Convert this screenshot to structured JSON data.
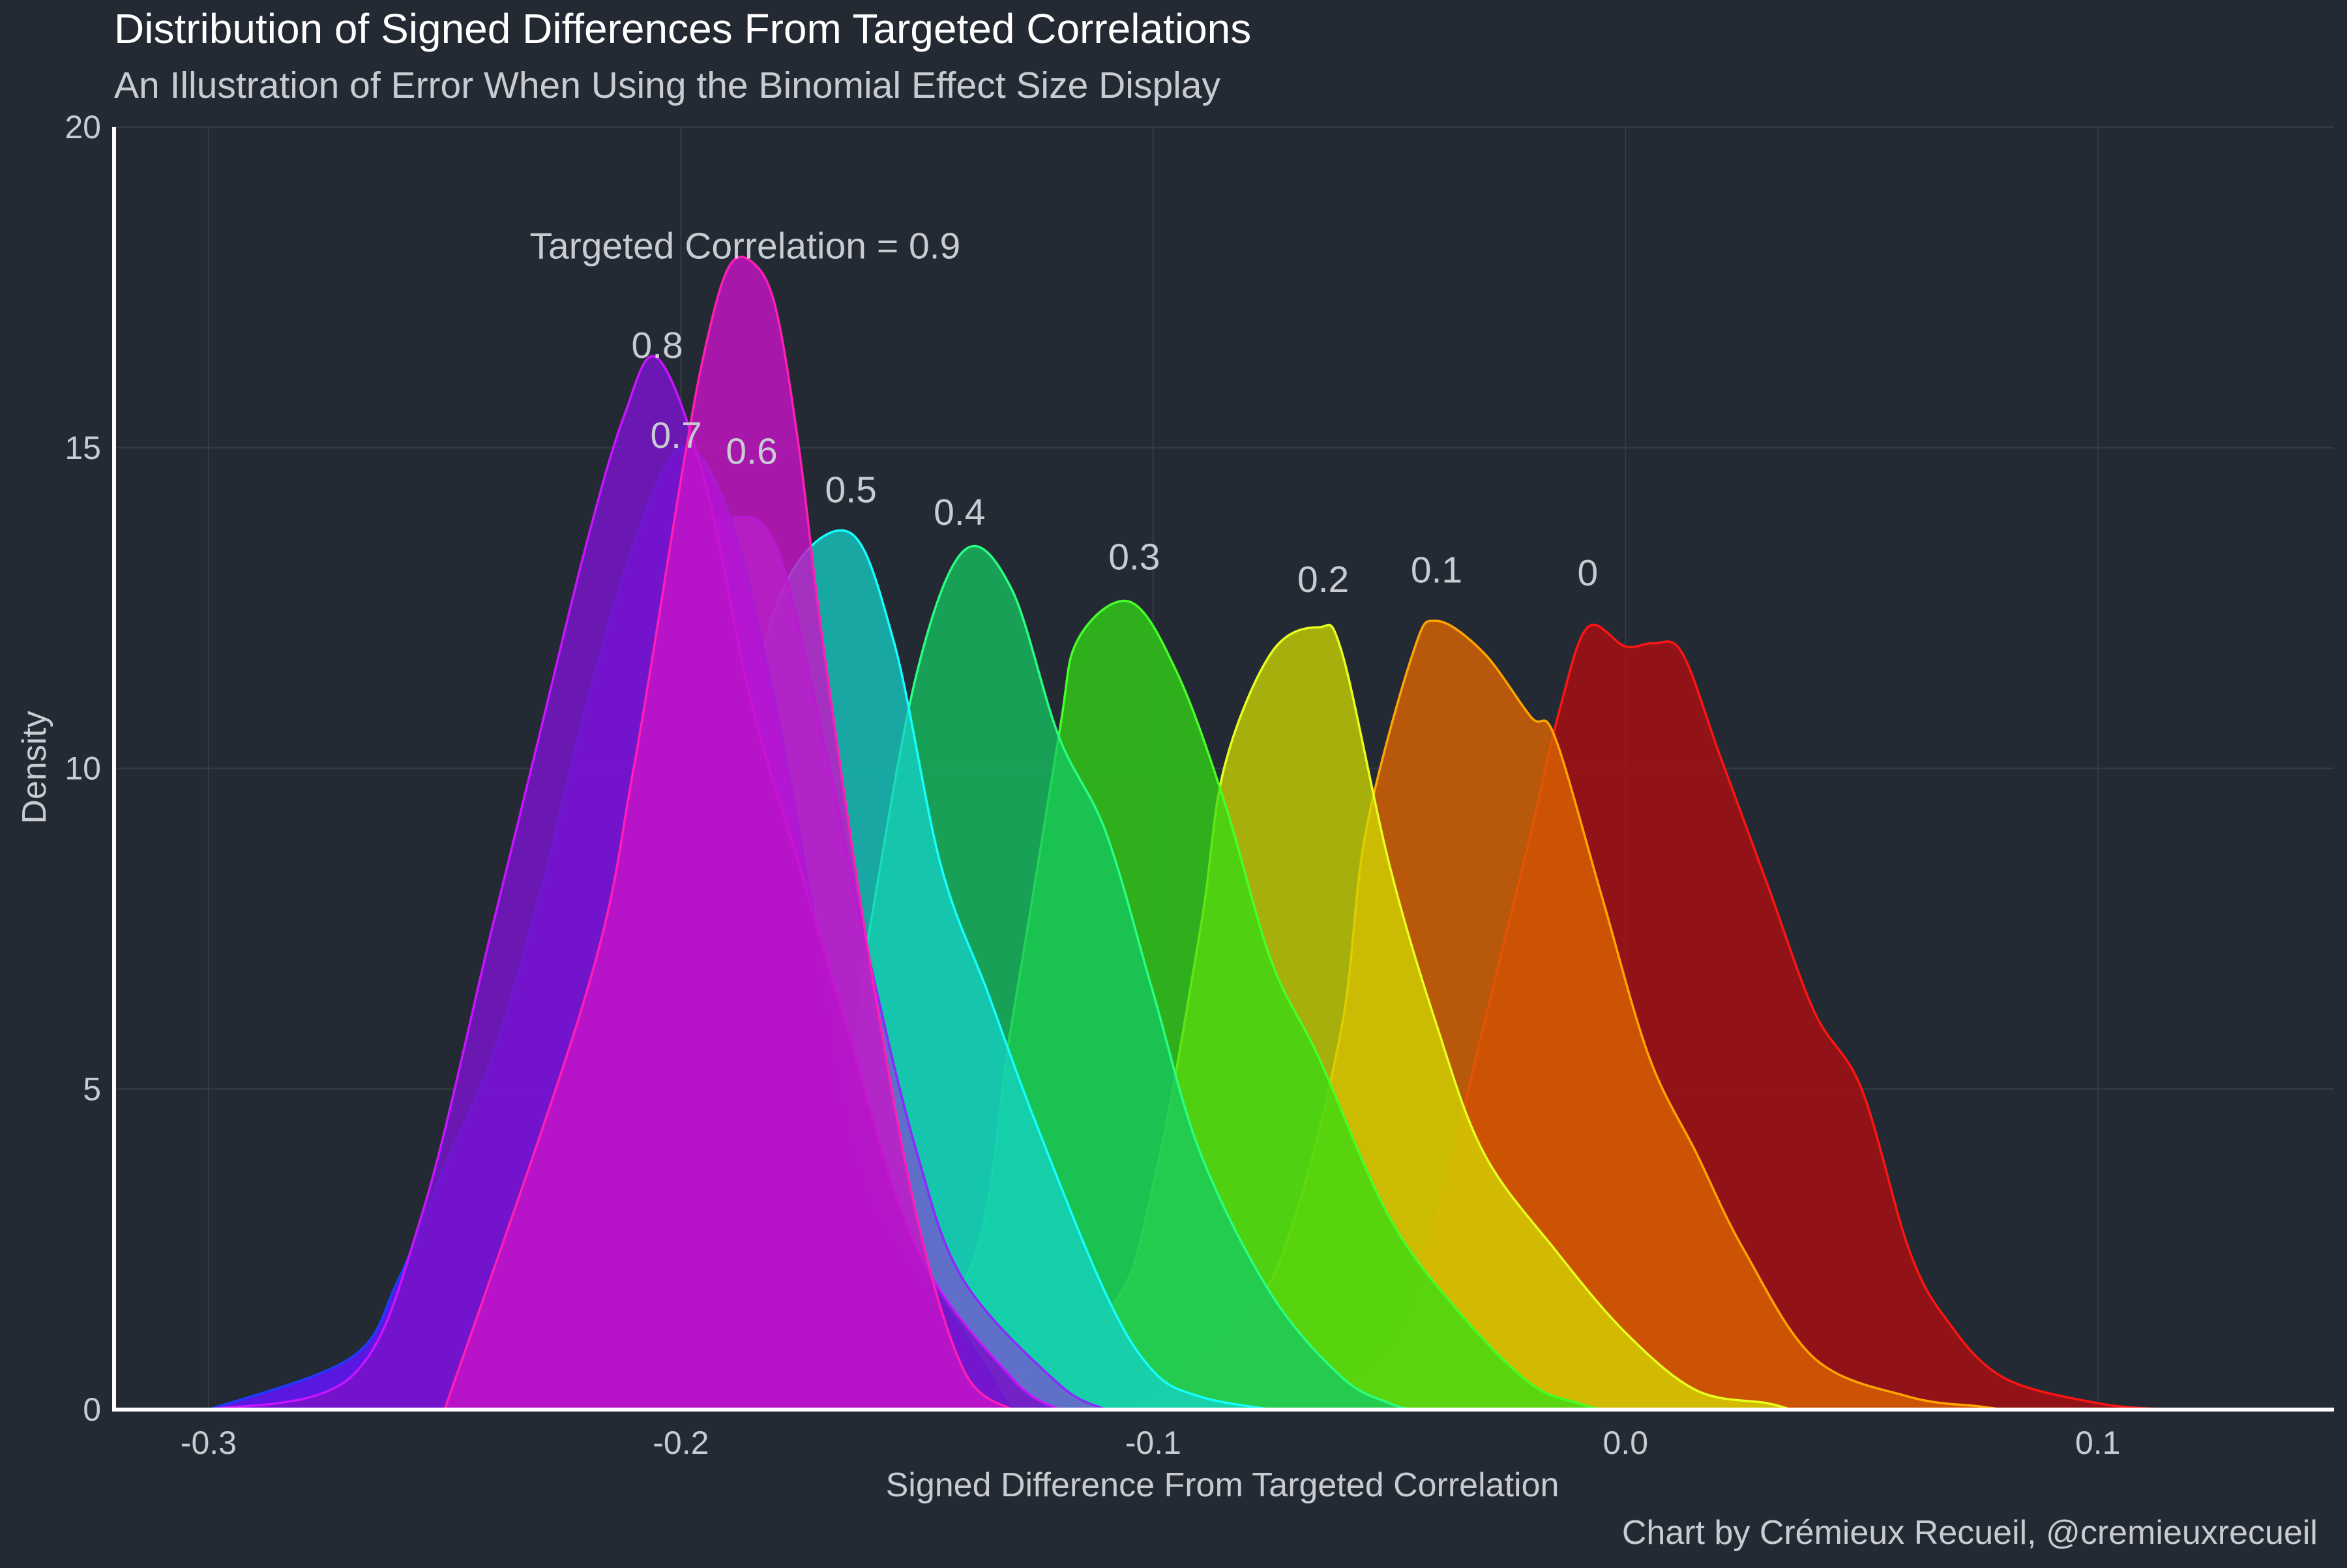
{
  "chart_data": {
    "type": "area",
    "title": "Distribution of Signed Differences From Targeted Correlations",
    "subtitle": "An Illustration of Error When Using the Binomial Effect Size Display",
    "xlabel": "Signed Difference From Targeted Correlation",
    "ylabel": "Density",
    "caption": "Chart by Crémieux Recueil, @cremieuxrecueil",
    "xlim": [
      -0.32,
      0.15
    ],
    "ylim": [
      0,
      20
    ],
    "x_ticks": [
      -0.3,
      -0.2,
      -0.1,
      0.0,
      0.1
    ],
    "x_tick_labels": [
      "-0.3",
      "-0.2",
      "-0.1",
      "0.0",
      "0.1"
    ],
    "y_ticks": [
      0,
      5,
      10,
      15,
      20
    ],
    "y_tick_labels": [
      "0",
      "5",
      "10",
      "15",
      "20"
    ],
    "grid": true,
    "legend": "none (series labeled directly above peaks)",
    "colors": {
      "background": "#242a33",
      "grid": "#353c47",
      "axis_line": "#ffffff",
      "text": "#c8ccd2",
      "title_text": "#ffffff"
    },
    "series": [
      {
        "name": "0",
        "label": "0",
        "color": "#ff1414",
        "fill": "#a50f14",
        "fill_opacity": 0.85,
        "label_x": -0.008,
        "label_y": 12.85,
        "x": [
          -0.07,
          -0.05,
          -0.04,
          -0.03,
          -0.02,
          -0.014,
          -0.008,
          0,
          0.006,
          0.012,
          0.02,
          0.03,
          0.04,
          0.05,
          0.06,
          0.068,
          0.08,
          0.1,
          0.115
        ],
        "y": [
          0.05,
          1.0,
          3.0,
          6.0,
          9.0,
          10.9,
          12.2,
          11.9,
          11.95,
          11.8,
          10.2,
          8.2,
          6.2,
          5.0,
          2.5,
          1.4,
          0.5,
          0.1,
          0
        ]
      },
      {
        "name": "0.1",
        "label": "0.1",
        "color": "#ffa500",
        "fill": "#dc6400",
        "fill_opacity": 0.8,
        "label_x": -0.04,
        "label_y": 12.9,
        "x": [
          -0.105,
          -0.08,
          -0.07,
          -0.06,
          -0.055,
          -0.045,
          -0.04,
          -0.03,
          -0.02,
          -0.015,
          -0.005,
          0.005,
          0.015,
          0.025,
          0.04,
          0.06,
          0.075,
          0.08
        ],
        "y": [
          0.05,
          1.5,
          3.0,
          6.0,
          9.0,
          11.8,
          12.3,
          11.8,
          10.8,
          10.5,
          8.0,
          5.5,
          4.0,
          2.5,
          0.8,
          0.2,
          0.05,
          0
        ]
      },
      {
        "name": "0.2",
        "label": "0.2",
        "color": "#e6ff1e",
        "fill": "#d2dc00",
        "fill_opacity": 0.75,
        "label_x": -0.064,
        "label_y": 12.75,
        "x": [
          -0.14,
          -0.11,
          -0.1,
          -0.09,
          -0.085,
          -0.075,
          -0.065,
          -0.06,
          -0.05,
          -0.04,
          -0.03,
          -0.015,
          0,
          0.015,
          0.03,
          0.035
        ],
        "y": [
          0.05,
          1.5,
          3.5,
          7.5,
          10.0,
          11.8,
          12.2,
          11.8,
          8.5,
          6.0,
          4.0,
          2.5,
          1.2,
          0.3,
          0.1,
          0
        ]
      },
      {
        "name": "0.3",
        "label": "0.3",
        "color": "#46ff28",
        "fill": "#32dc14",
        "fill_opacity": 0.75,
        "label_x": -0.104,
        "label_y": 13.1,
        "x": [
          -0.17,
          -0.14,
          -0.13,
          -0.12,
          -0.116,
          -0.105,
          -0.095,
          -0.085,
          -0.075,
          -0.065,
          -0.05,
          -0.035,
          -0.02,
          -0.01,
          -0.005
        ],
        "y": [
          0.05,
          2.0,
          6.0,
          10.5,
          12.0,
          12.6,
          11.5,
          9.5,
          7.0,
          5.5,
          3.0,
          1.5,
          0.4,
          0.1,
          0
        ]
      },
      {
        "name": "0.4",
        "label": "0.4",
        "color": "#28ff82",
        "fill": "#14c864",
        "fill_opacity": 0.75,
        "label_x": -0.141,
        "label_y": 13.8,
        "x": [
          -0.2,
          -0.17,
          -0.16,
          -0.15,
          -0.14,
          -0.13,
          -0.12,
          -0.11,
          -0.1,
          -0.09,
          -0.075,
          -0.06,
          -0.05,
          -0.045
        ],
        "y": [
          0.05,
          3.0,
          7.5,
          11.5,
          13.4,
          12.8,
          10.5,
          9.0,
          6.5,
          4.0,
          1.8,
          0.5,
          0.1,
          0
        ]
      },
      {
        "name": "0.5",
        "label": "0.5",
        "color": "#14ffff",
        "fill": "#14d2c8",
        "fill_opacity": 0.75,
        "label_x": -0.164,
        "label_y": 14.15,
        "x": [
          -0.22,
          -0.2,
          -0.19,
          -0.18,
          -0.165,
          -0.155,
          -0.145,
          -0.135,
          -0.125,
          -0.11,
          -0.1,
          -0.09,
          -0.075
        ],
        "y": [
          0.1,
          3.0,
          8.5,
          12.5,
          13.7,
          12.0,
          8.5,
          6.5,
          4.5,
          1.8,
          0.6,
          0.2,
          0
        ]
      },
      {
        "name": "0.6",
        "label": "0.6",
        "color": "#8c28ff",
        "fill": "#7850d2",
        "fill_opacity": 0.75,
        "label_x": -0.185,
        "label_y": 14.75,
        "x": [
          -0.25,
          -0.23,
          -0.22,
          -0.205,
          -0.195,
          -0.19,
          -0.18,
          -0.17,
          -0.16,
          -0.15,
          -0.14,
          -0.12,
          -0.11
        ],
        "y": [
          0.05,
          3.0,
          6.0,
          10.5,
          13.5,
          13.9,
          13.5,
          10.5,
          7.0,
          4.0,
          2.0,
          0.4,
          0
        ]
      },
      {
        "name": "0.7",
        "label": "0.7",
        "color": "#1e3cff",
        "fill": "#6414ff",
        "fill_opacity": 0.85,
        "label_x": -0.201,
        "label_y": 15.0,
        "x": [
          -0.3,
          -0.27,
          -0.26,
          -0.25,
          -0.24,
          -0.23,
          -0.22,
          -0.21,
          -0.2,
          -0.19,
          -0.18,
          -0.17,
          -0.16,
          -0.14,
          -0.13
        ],
        "y": [
          0,
          0.8,
          2.0,
          3.8,
          5.5,
          8.0,
          11.0,
          13.5,
          15.0,
          14.0,
          11.0,
          7.0,
          3.5,
          1.2,
          0
        ]
      },
      {
        "name": "0.8",
        "label": "0.8",
        "color": "#c814ff",
        "fill": "#7814c8",
        "fill_opacity": 0.85,
        "label_x": -0.205,
        "label_y": 16.4,
        "x": [
          -0.3,
          -0.27,
          -0.255,
          -0.24,
          -0.23,
          -0.22,
          -0.212,
          -0.205,
          -0.195,
          -0.185,
          -0.175,
          -0.165,
          -0.15,
          -0.13,
          -0.12
        ],
        "y": [
          0,
          0.5,
          3.0,
          7.5,
          10.5,
          13.5,
          15.5,
          16.4,
          14.5,
          11.0,
          8.5,
          6.0,
          2.5,
          0.5,
          0
        ]
      },
      {
        "name": "0.9",
        "label": "0.9",
        "color": "#ff1eb4",
        "fill": "#c814c8",
        "fill_opacity": 0.8,
        "label_x": -0.232,
        "label_y": 17.95,
        "x": [
          -0.25,
          -0.22,
          -0.21,
          -0.2,
          -0.195,
          -0.19,
          -0.185,
          -0.18,
          -0.175,
          -0.17,
          -0.16,
          -0.15,
          -0.14,
          -0.13
        ],
        "y": [
          0,
          6.5,
          10.0,
          14.5,
          16.5,
          17.8,
          17.9,
          17.2,
          15.0,
          12.0,
          7.0,
          3.0,
          0.6,
          0
        ]
      }
    ],
    "annotation": "Targeted Correlation = "
  }
}
